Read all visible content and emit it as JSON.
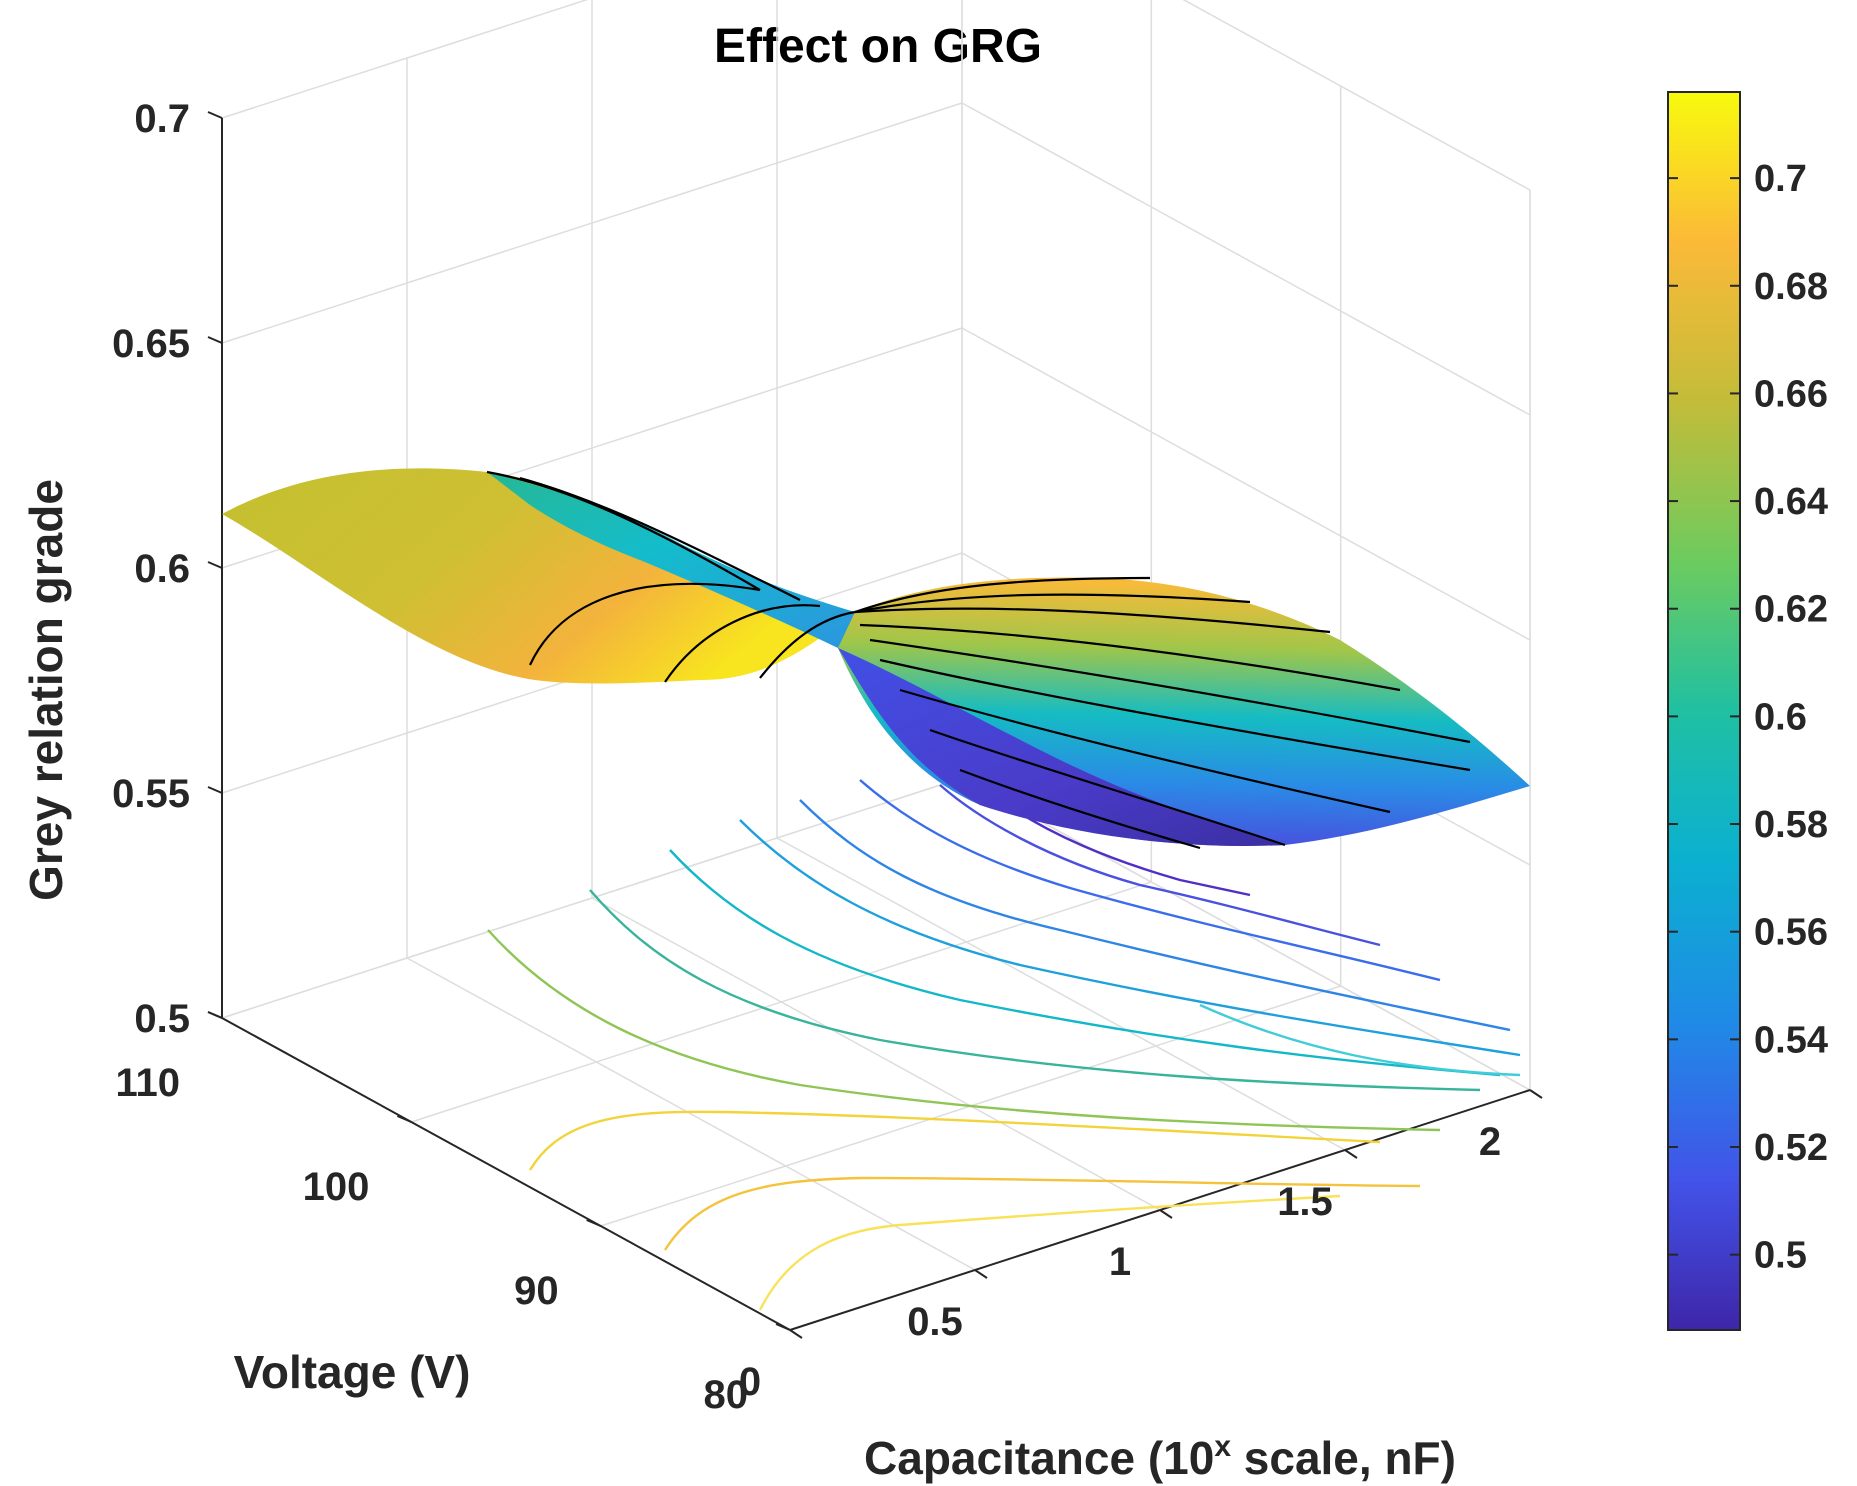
{
  "chart_data": {
    "type": "surface3d",
    "title": "Effect on GRG",
    "xlabel_main": "Capacitance (10",
    "xlabel_sup": "x",
    "xlabel_tail": " scale, nF)",
    "ylabel": "Voltage (V)",
    "zlabel": "Grey relation grade",
    "colormap": "parula",
    "grid": true,
    "colorbar": "right",
    "x_range": [
      0,
      2
    ],
    "y_range": [
      80,
      110
    ],
    "z_range": [
      0.5,
      0.7
    ],
    "x_ticks": [
      0,
      0.5,
      1,
      1.5,
      2
    ],
    "x_tick_labels": [
      "0",
      "0.5",
      "1",
      "1.5",
      "2"
    ],
    "y_ticks": [
      80,
      90,
      100,
      110
    ],
    "y_tick_labels": [
      "80",
      "90",
      "100",
      "110"
    ],
    "z_ticks": [
      0.5,
      0.55,
      0.6,
      0.65,
      0.7
    ],
    "z_tick_labels": [
      "0.5",
      "0.55",
      "0.6",
      "0.65",
      "0.7"
    ],
    "colorbar_range": [
      0.486,
      0.716
    ],
    "colorbar_ticks": [
      0.5,
      0.52,
      0.54,
      0.56,
      0.58,
      0.6,
      0.62,
      0.64,
      0.66,
      0.68,
      0.7
    ],
    "colorbar_tick_labels": [
      "0.5",
      "0.52",
      "0.54",
      "0.56",
      "0.58",
      "0.6",
      "0.62",
      "0.64",
      "0.66",
      "0.68",
      "0.7"
    ],
    "surface_samples": [
      {
        "capacitance": 0,
        "voltage": 80,
        "grg": 0.62
      },
      {
        "capacitance": 0,
        "voltage": 110,
        "grg": 0.65
      },
      {
        "capacitance": 1,
        "voltage": 95,
        "grg": 0.62
      },
      {
        "capacitance": 2,
        "voltage": 80,
        "grg": 0.58
      },
      {
        "capacitance": 2,
        "voltage": 110,
        "grg": 0.68
      },
      {
        "capacitance": 1.5,
        "voltage": 82,
        "grg": 0.5
      }
    ]
  }
}
